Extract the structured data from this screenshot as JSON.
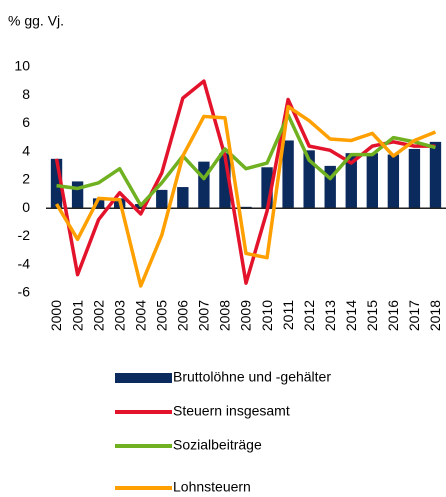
{
  "chart_data": {
    "type": "bar",
    "subtitle": "% gg. Vj.",
    "categories": [
      "2000",
      "2001",
      "2002",
      "2003",
      "2004",
      "2005",
      "2006",
      "2007",
      "2008",
      "2009",
      "2010",
      "2011",
      "2012",
      "2013",
      "2014",
      "2015",
      "2016",
      "2017",
      "2018"
    ],
    "series": [
      {
        "name": "Bruttolöhne und -gehälter",
        "type": "bar",
        "color": "#0b2a5e",
        "values": [
          3.5,
          1.9,
          0.7,
          0.7,
          0.3,
          1.3,
          1.5,
          3.3,
          3.9,
          0.1,
          2.9,
          4.8,
          4.1,
          3.0,
          3.9,
          3.9,
          3.8,
          4.2,
          4.7
        ]
      },
      {
        "name": "Steuern insgesamt",
        "type": "line",
        "color": "#e3132c",
        "values": [
          3.5,
          -4.7,
          -0.8,
          1.1,
          -0.4,
          2.5,
          7.8,
          9.0,
          3.7,
          -5.3,
          -0.2,
          7.7,
          4.4,
          4.1,
          3.2,
          4.4,
          4.7,
          4.4,
          4.4
        ]
      },
      {
        "name": "Sozialbeiträge",
        "type": "line",
        "color": "#6fb120",
        "values": [
          1.6,
          1.4,
          1.8,
          2.8,
          0.2,
          1.8,
          3.7,
          2.1,
          4.2,
          2.8,
          3.2,
          6.6,
          3.4,
          2.1,
          3.8,
          3.8,
          5.0,
          4.7,
          4.3
        ]
      },
      {
        "name": "Lohnsteuern",
        "type": "line",
        "color": "#ffa000",
        "values": [
          0.3,
          -2.2,
          0.7,
          0.6,
          -5.5,
          -1.9,
          3.7,
          6.5,
          6.4,
          -3.2,
          -3.5,
          7.2,
          6.2,
          4.9,
          4.8,
          5.3,
          3.7,
          4.8,
          5.4
        ]
      }
    ],
    "ylim": [
      -6,
      10
    ],
    "yticks": [
      -6,
      -4,
      -2,
      0,
      2,
      4,
      6,
      8,
      10
    ],
    "grid": false
  }
}
